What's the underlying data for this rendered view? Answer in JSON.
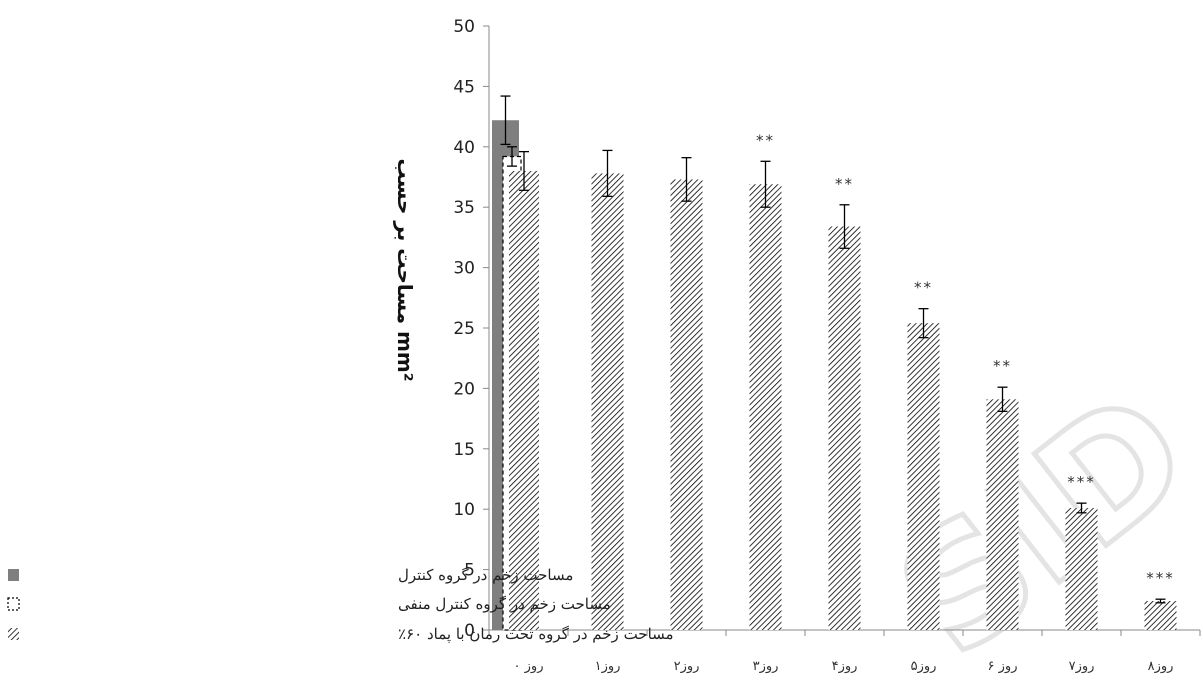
{
  "chart_data": {
    "type": "bar",
    "categories": [
      "روز ۰",
      "روز۱",
      "روز۲",
      "روز۳",
      "روز۴",
      "روز۵",
      "روز ۶",
      "روز۷",
      "روز۸"
    ],
    "series": [
      {
        "name": "مساحت زخم در گروه کنترل",
        "values": [
          42.2,
          null,
          null,
          null,
          null,
          null,
          null,
          null,
          null
        ],
        "errors": [
          2.0,
          null,
          null,
          null,
          null,
          null,
          null,
          null,
          null
        ],
        "fill": "solid-gray",
        "color": "#7f7f7f"
      },
      {
        "name": "مساحت زخم در گروه کنترل منفی",
        "values": [
          39.2,
          null,
          null,
          null,
          null,
          null,
          null,
          null,
          null
        ],
        "errors": [
          0.8,
          null,
          null,
          null,
          null,
          null,
          null,
          null,
          null
        ],
        "fill": "dashed-white",
        "color": "#000000"
      },
      {
        "name": "مساحت زخم در گروه تحت رمان با پماد ۶۰٪",
        "values": [
          38.0,
          37.8,
          37.3,
          36.9,
          33.4,
          25.4,
          19.1,
          10.1,
          2.4
        ],
        "errors": [
          1.6,
          1.9,
          1.8,
          1.9,
          1.8,
          1.2,
          1.0,
          0.4,
          0.15
        ],
        "fill": "diagonal-hatch",
        "color": "#000000"
      }
    ],
    "significance": [
      "",
      "",
      "",
      "**",
      "**",
      "**",
      "**",
      "***",
      "***"
    ],
    "ylabel": "مساحت بر حسب mm²",
    "ylim": [
      0,
      50
    ],
    "yticks": [
      0,
      5,
      10,
      15,
      20,
      25,
      30,
      35,
      40,
      45,
      50
    ],
    "grid": false,
    "legend_position": "bottom-left"
  },
  "legend": [
    {
      "text": "مساحت زخم در گروه کنترل",
      "swatch": "solid-gray"
    },
    {
      "text": "مساحت زخم در گروه کنترل منفی",
      "swatch": "dashed-white"
    },
    {
      "text": "مساحت زخم در گروه تحت رمان با پماد ۶۰٪",
      "swatch": "diagonal-hatch"
    }
  ],
  "watermark": "SID"
}
